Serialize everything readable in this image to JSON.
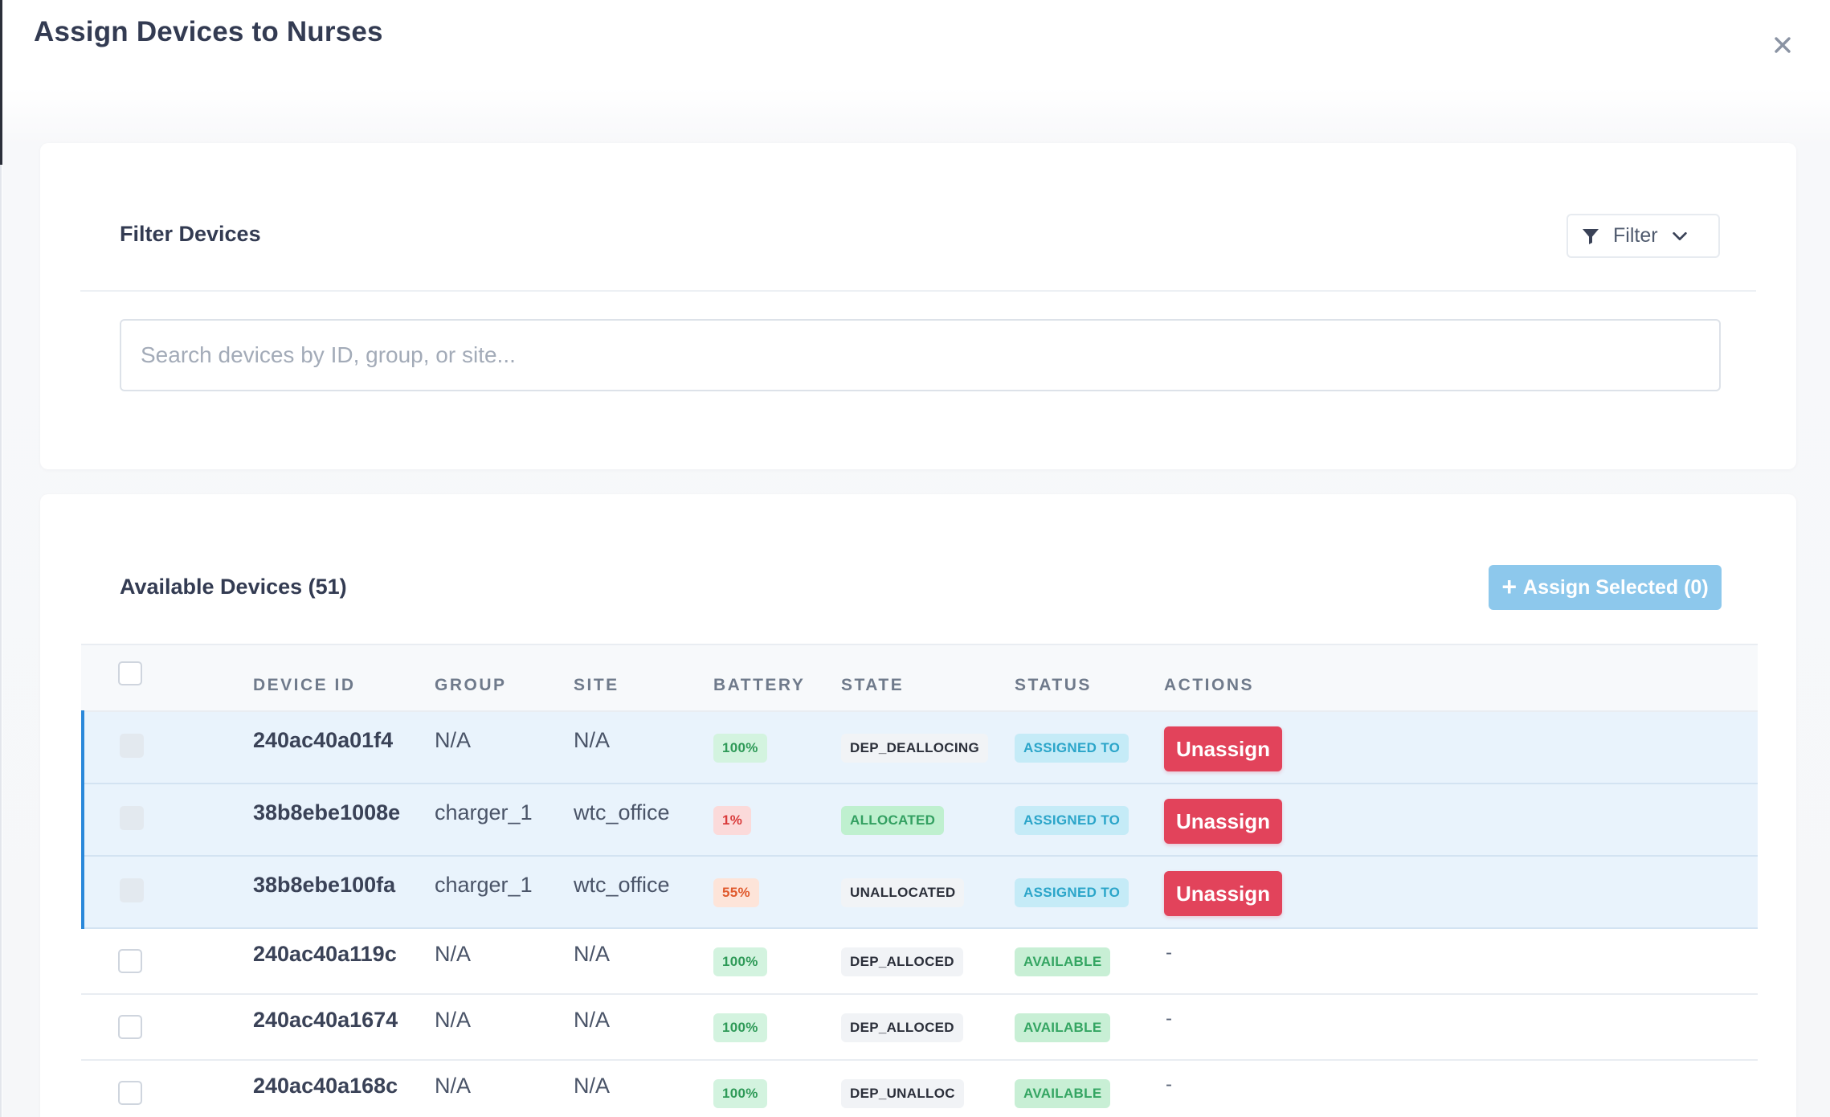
{
  "modal": {
    "title": "Assign Devices to Nurses"
  },
  "filter_card": {
    "title": "Filter Devices",
    "filter_button_label": "Filter",
    "search_placeholder": "Search devices by ID, group, or site..."
  },
  "devices_card": {
    "title": "Available Devices (51)",
    "assign_button_label": "Assign Selected (0)",
    "columns": [
      "DEVICE ID",
      "GROUP",
      "SITE",
      "BATTERY",
      "STATE",
      "STATUS",
      "ACTIONS"
    ],
    "rows": [
      {
        "device_id": "240ac40a01f4",
        "group": "N/A",
        "site": "N/A",
        "battery": "100%",
        "battery_level": "high",
        "state": "DEP_DEALLOCING",
        "status": "ASSIGNED TO",
        "action": "Unassign",
        "selected": true
      },
      {
        "device_id": "38b8ebe1008e",
        "group": "charger_1",
        "site": "wtc_office",
        "battery": "1%",
        "battery_level": "low",
        "state": "ALLOCATED",
        "status": "ASSIGNED TO",
        "action": "Unassign",
        "selected": true
      },
      {
        "device_id": "38b8ebe100fa",
        "group": "charger_1",
        "site": "wtc_office",
        "battery": "55%",
        "battery_level": "medium",
        "state": "UNALLOCATED",
        "status": "ASSIGNED TO",
        "action": "Unassign",
        "selected": true
      },
      {
        "device_id": "240ac40a119c",
        "group": "N/A",
        "site": "N/A",
        "battery": "100%",
        "battery_level": "high",
        "state": "DEP_ALLOCED",
        "status": "AVAILABLE",
        "action": "-",
        "selected": false
      },
      {
        "device_id": "240ac40a1674",
        "group": "N/A",
        "site": "N/A",
        "battery": "100%",
        "battery_level": "high",
        "state": "DEP_ALLOCED",
        "status": "AVAILABLE",
        "action": "-",
        "selected": false
      },
      {
        "device_id": "240ac40a168c",
        "group": "N/A",
        "site": "N/A",
        "battery": "100%",
        "battery_level": "high",
        "state": "DEP_UNALLOC",
        "status": "AVAILABLE",
        "action": "-",
        "selected": false
      }
    ]
  },
  "icons": {
    "close": "close-icon",
    "filter": "filter-funnel-icon",
    "chevron": "chevron-down-icon",
    "plus": "plus-icon"
  },
  "colors": {
    "primary_disabled": "#8dc8ec",
    "danger": "#e2435b",
    "selected_row": "#e9f3fc",
    "selected_accent": "#2a88da"
  }
}
